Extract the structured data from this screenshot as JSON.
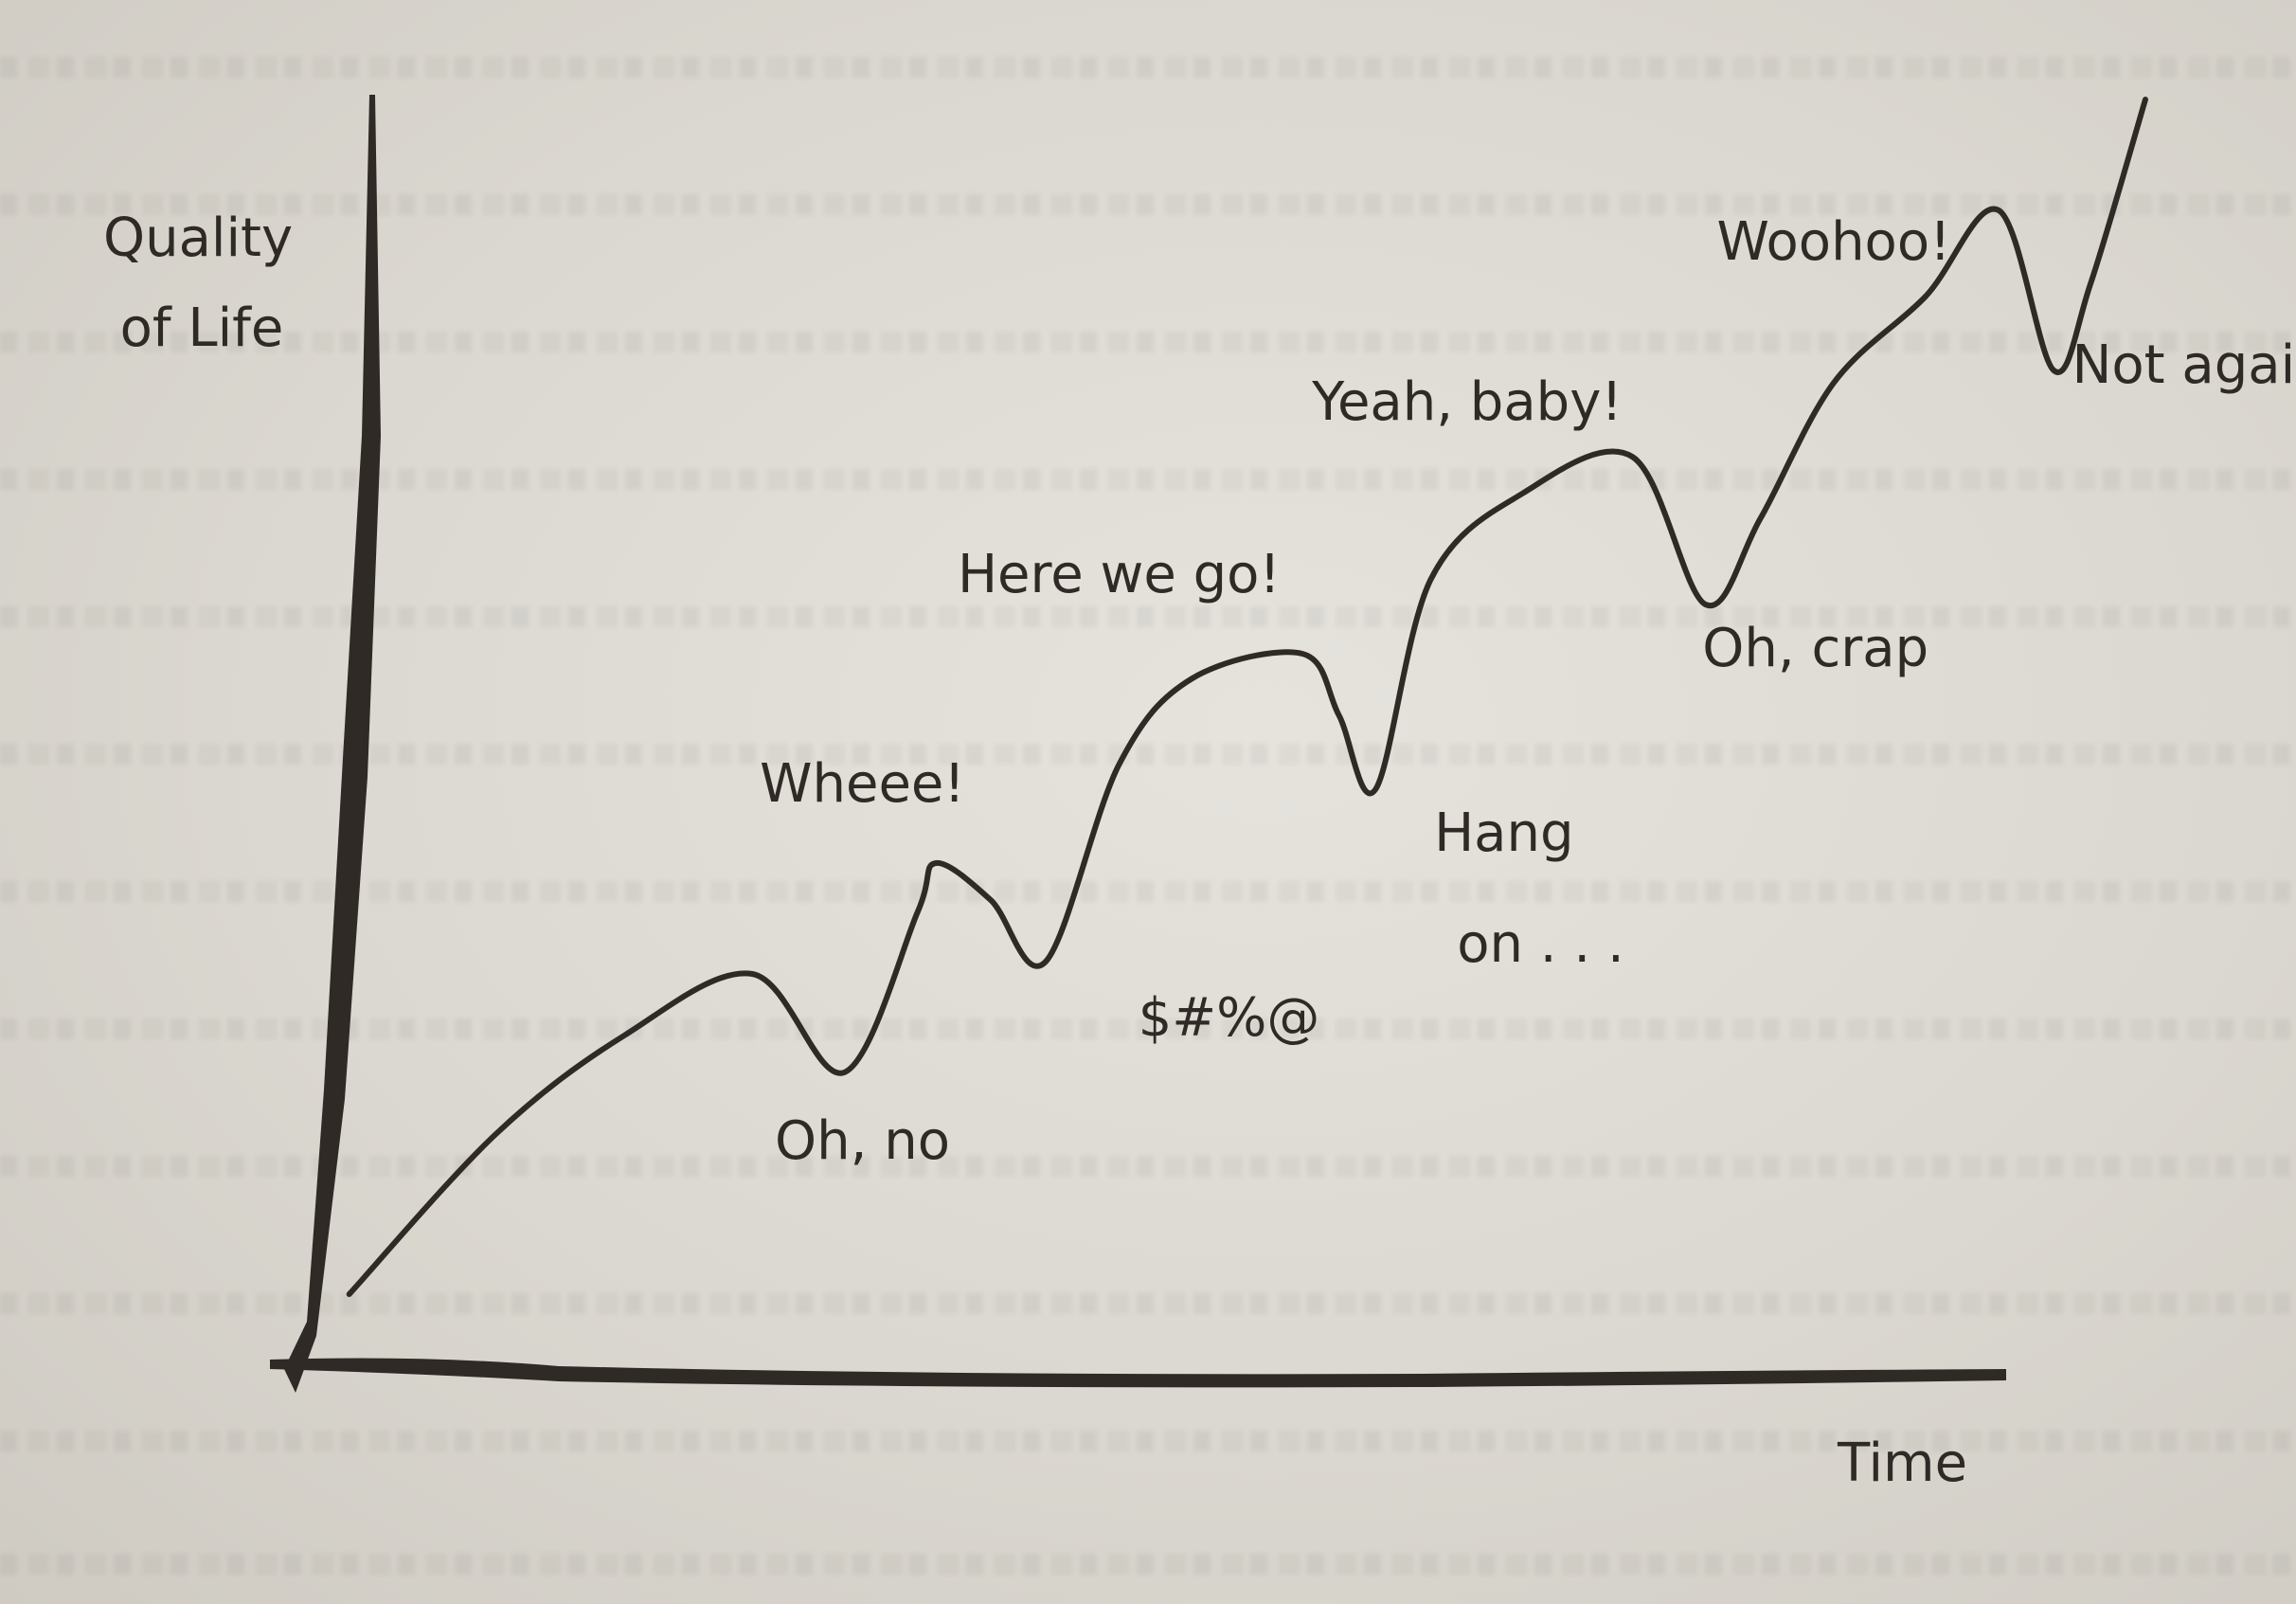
{
  "chart_data": {
    "type": "line",
    "title": "",
    "ylabel": "Quality of Life",
    "xlabel": "Time",
    "xlim": [
      0,
      100
    ],
    "ylim": [
      0,
      100
    ],
    "grid": false,
    "legend": "none",
    "series": [
      {
        "values": [
          {
            "x": 2,
            "y": 3
          },
          {
            "x": 10,
            "y": 16
          },
          {
            "x": 17,
            "y": 24
          },
          {
            "x": 24,
            "y": 29
          },
          {
            "x": 29,
            "y": 21
          },
          {
            "x": 33,
            "y": 34
          },
          {
            "x": 34,
            "y": 38
          },
          {
            "x": 37,
            "y": 35
          },
          {
            "x": 40,
            "y": 30
          },
          {
            "x": 44,
            "y": 46
          },
          {
            "x": 48,
            "y": 53
          },
          {
            "x": 54,
            "y": 55
          },
          {
            "x": 56,
            "y": 50
          },
          {
            "x": 58,
            "y": 44
          },
          {
            "x": 61,
            "y": 61
          },
          {
            "x": 66,
            "y": 68
          },
          {
            "x": 72,
            "y": 71
          },
          {
            "x": 76,
            "y": 59
          },
          {
            "x": 79,
            "y": 66
          },
          {
            "x": 83,
            "y": 77
          },
          {
            "x": 88,
            "y": 84
          },
          {
            "x": 92,
            "y": 91
          },
          {
            "x": 95,
            "y": 78
          },
          {
            "x": 97,
            "y": 85
          },
          {
            "x": 100,
            "y": 100
          }
        ]
      }
    ],
    "annotations": [
      {
        "text": "Wheee!",
        "x": 30,
        "y": 43
      },
      {
        "text": "Oh, no",
        "x": 30,
        "y": 14
      },
      {
        "text": "Here we go!",
        "x": 44,
        "y": 60
      },
      {
        "text": "$#%@",
        "x": 50,
        "y": 24
      },
      {
        "text": "Hang",
        "x": 65,
        "y": 39
      },
      {
        "text": "on . . .",
        "x": 67,
        "y": 30
      },
      {
        "text": "Yeah, baby!",
        "x": 63,
        "y": 74
      },
      {
        "text": "Oh, crap",
        "x": 82,
        "y": 54
      },
      {
        "text": "Woohoo!",
        "x": 83,
        "y": 87
      },
      {
        "text": "Not again",
        "x": 103,
        "y": 77
      }
    ],
    "colors": {
      "line": "#2f2a26",
      "text": "#2f2a26",
      "paper": "#dcdad4"
    }
  }
}
